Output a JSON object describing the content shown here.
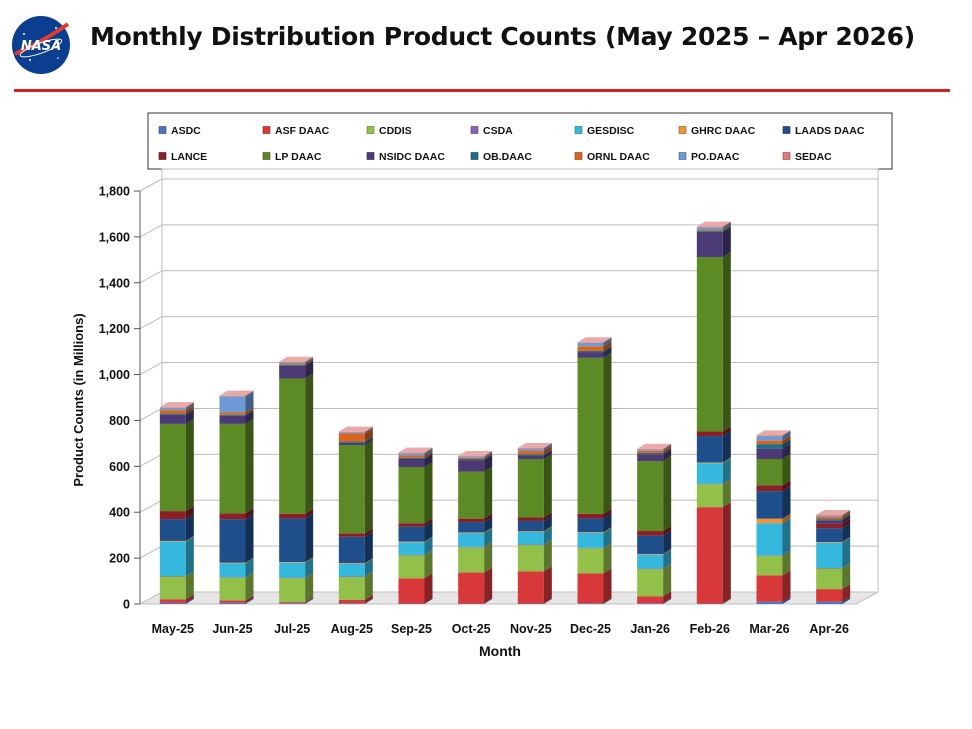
{
  "header": {
    "logo_text": "NASA",
    "title": "Monthly Distribution Product Counts (May 2025 – Apr 2026)"
  },
  "colors": {
    "accent_rule": "#d11f26",
    "ASDC": "#4a76c4",
    "ASF DAAC": "#d9383a",
    "CDDIS": "#93c048",
    "CSDA": "#8a5fb5",
    "GESDISC": "#35b8dd",
    "GHRC DAAC": "#f09533",
    "LAADS DAAC": "#1f4f8b",
    "LANCE": "#8b1f25",
    "LP DAAC": "#5c8a25",
    "NSIDC DAAC": "#4b3a75",
    "OB.DAAC": "#1f6f86",
    "ORNL DAAC": "#d9661c",
    "PO.DAAC": "#6e9ad6",
    "SEDAC": "#df7b7b"
  },
  "chart_data": {
    "type": "bar",
    "stacked": true,
    "style": "3d",
    "title": "",
    "xlabel": "Month",
    "ylabel": "Product Counts (in Millions)",
    "ylim": [
      0,
      1800
    ],
    "yticks": [
      0,
      200,
      400,
      600,
      800,
      1000,
      1200,
      1400,
      1600,
      1800
    ],
    "ytick_labels": [
      "0",
      "200",
      "400",
      "600",
      "800",
      "1,000",
      "1,200",
      "1,400",
      "1,600",
      "1,800"
    ],
    "grid": true,
    "legend_position": "top",
    "categories": [
      "May-25",
      "Jun-25",
      "Jul-25",
      "Aug-25",
      "Sep-25",
      "Oct-25",
      "Nov-25",
      "Dec-25",
      "Jan-26",
      "Feb-26",
      "Mar-26",
      "Apr-26"
    ],
    "series": [
      {
        "name": "ASDC",
        "values": [
          5,
          5,
          3,
          3,
          2,
          2,
          2,
          3,
          3,
          2,
          10,
          10
        ]
      },
      {
        "name": "ASF DAAC",
        "values": [
          15,
          10,
          5,
          15,
          110,
          135,
          140,
          130,
          30,
          420,
          115,
          55
        ]
      },
      {
        "name": "CDDIS",
        "values": [
          100,
          100,
          105,
          100,
          100,
          110,
          115,
          110,
          120,
          100,
          85,
          90
        ]
      },
      {
        "name": "CSDA",
        "values": [
          2,
          2,
          2,
          2,
          2,
          2,
          2,
          2,
          2,
          2,
          2,
          2
        ]
      },
      {
        "name": "GESDISC",
        "values": [
          150,
          60,
          65,
          55,
          55,
          60,
          55,
          65,
          60,
          90,
          140,
          110
        ]
      },
      {
        "name": "GHRC DAAC",
        "values": [
          3,
          3,
          3,
          3,
          3,
          3,
          3,
          3,
          3,
          3,
          20,
          3
        ]
      },
      {
        "name": "LAADS DAAC",
        "values": [
          95,
          190,
          190,
          115,
          65,
          45,
          45,
          60,
          80,
          115,
          120,
          60
        ]
      },
      {
        "name": "LANCE",
        "values": [
          35,
          25,
          20,
          15,
          15,
          15,
          15,
          20,
          20,
          20,
          25,
          20
        ]
      },
      {
        "name": "LP DAAC",
        "values": [
          380,
          390,
          590,
          385,
          245,
          205,
          255,
          680,
          305,
          760,
          115,
          0
        ]
      },
      {
        "name": "NSIDC DAAC",
        "values": [
          40,
          35,
          55,
          10,
          35,
          50,
          15,
          25,
          30,
          110,
          45,
          15
        ]
      },
      {
        "name": "OB.DAAC",
        "values": [
          5,
          5,
          5,
          5,
          5,
          5,
          5,
          5,
          5,
          5,
          20,
          5
        ]
      },
      {
        "name": "ORNL DAAC",
        "values": [
          15,
          10,
          5,
          35,
          10,
          5,
          15,
          20,
          10,
          5,
          15,
          10
        ]
      },
      {
        "name": "PO.DAAC",
        "values": [
          10,
          70,
          5,
          5,
          10,
          5,
          10,
          15,
          5,
          10,
          20,
          5
        ]
      },
      {
        "name": "SEDAC",
        "values": [
          3,
          3,
          3,
          3,
          3,
          3,
          3,
          3,
          3,
          3,
          3,
          3
        ]
      }
    ]
  }
}
